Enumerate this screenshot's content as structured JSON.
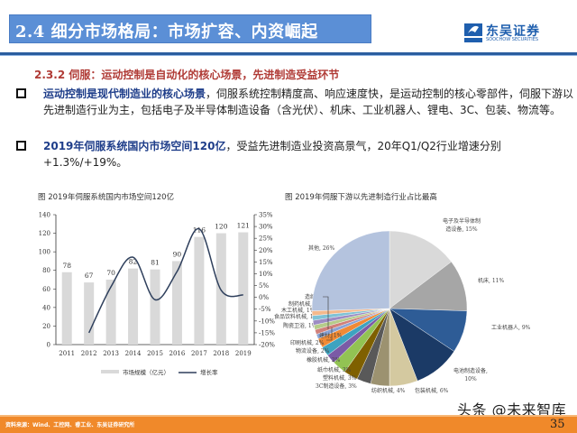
{
  "header": {
    "title": "2.4 细分市场格局：市场扩容、内资崛起",
    "logo_cn": "东吴证券",
    "logo_en": "SOOCHOW SECURITIES",
    "colors": {
      "title_bg": "#5b8fd6",
      "divider": "#2a5d9f",
      "logo": "#1f5fae"
    }
  },
  "content": {
    "subtitle": "2.3.2 伺服：运动控制是自动化的核心场景，先进制造受益环节",
    "bullets": [
      {
        "highlight": "运动控制是现代制造业的核心场景",
        "text": "，伺服系统控制精度高、响应速度快，是运动控制的核心零部件，伺服下游以先进制造行业为主，包括电子及半导体制造设备（含光伏）、机床、工业机器人、锂电、3C、包装、物流等。"
      },
      {
        "highlight": "2019年伺服系统国内市场空间120亿",
        "text": "，受益先进制造业投资高景气，20年Q1/Q2行业增速分别+1.3%/+19%。"
      }
    ]
  },
  "chart_data": [
    {
      "type": "bar",
      "title": "图 2019年伺服系统国内市场空间120亿",
      "categories": [
        "2011",
        "2012",
        "2013",
        "2014",
        "2015",
        "2016",
        "2017",
        "2018",
        "2019"
      ],
      "series": [
        {
          "name": "市场规模（亿元）",
          "type": "bar",
          "axis": "left",
          "color": "#d9d9d9",
          "values": [
            78,
            67,
            70,
            82,
            81,
            90,
            116,
            120,
            121
          ]
        },
        {
          "name": "增长率",
          "type": "line",
          "axis": "right",
          "color": "#2e3f5c",
          "values": [
            null,
            -15,
            4.5,
            17,
            -1,
            11,
            29,
            3,
            1
          ]
        }
      ],
      "ylim_left": [
        0,
        140
      ],
      "yticks_left": [
        "0",
        "20",
        "40",
        "60",
        "80",
        "100",
        "120",
        "140"
      ],
      "ylim_right": [
        -20,
        35
      ],
      "yticks_right": [
        "-20%",
        "-15%",
        "-10%",
        "-5%",
        "0%",
        "5%",
        "10%",
        "15%",
        "20%",
        "25%",
        "30%",
        "35%"
      ],
      "grid": false,
      "legend_position": "bottom"
    },
    {
      "type": "pie",
      "title": "图 2019年伺服下游以先进制造行业占比最高",
      "slices": [
        {
          "label": "电子及半导体制造设备",
          "value": 15,
          "color": "#d9d9d9"
        },
        {
          "label": "机床",
          "value": 11,
          "color": "#a6a6a6"
        },
        {
          "label": "工业机器人",
          "value": 9,
          "color": "#2e5c96"
        },
        {
          "label": "电池制造设备",
          "value": 10,
          "color": "#1b3a66"
        },
        {
          "label": "包装机械",
          "value": 6,
          "color": "#d4c9a0"
        },
        {
          "label": "纺织机械",
          "value": 4,
          "color": "#9c9270"
        },
        {
          "label": "3C制造设备",
          "value": 3,
          "color": "#595959"
        },
        {
          "label": "塑料机械",
          "value": 3,
          "color": "#7f6000"
        },
        {
          "label": "纸巾机械",
          "value": 3,
          "color": "#92c353"
        },
        {
          "label": "橡胶机械",
          "value": 2,
          "color": "#7b5ba6"
        },
        {
          "label": "物流设备",
          "value": 2,
          "color": "#3ea3c0"
        },
        {
          "label": "印刷机械",
          "value": 2,
          "color": "#f08a35"
        },
        {
          "label": "建材",
          "value": 1,
          "color": "#8aa4d6"
        },
        {
          "label": "陶瓷卫浴",
          "value": 1,
          "color": "#d0807a"
        },
        {
          "label": "食品饮料机械",
          "value": 1,
          "color": "#b5cc8a"
        },
        {
          "label": "木工机械",
          "value": 1,
          "color": "#9d8cc4"
        },
        {
          "label": "制药机械",
          "value": 1,
          "color": "#7fc2d6"
        },
        {
          "label": "造纸",
          "value": 1,
          "color": "#f4b98c"
        },
        {
          "label": "其他",
          "value": 26,
          "color": "#b4c3de"
        }
      ]
    }
  ],
  "footer": {
    "source": "资料来源：Wind、工控网、睿工业、东吴证券研究所",
    "page": "35",
    "watermark": "头条 @未来智库",
    "color": "#f0892a"
  }
}
